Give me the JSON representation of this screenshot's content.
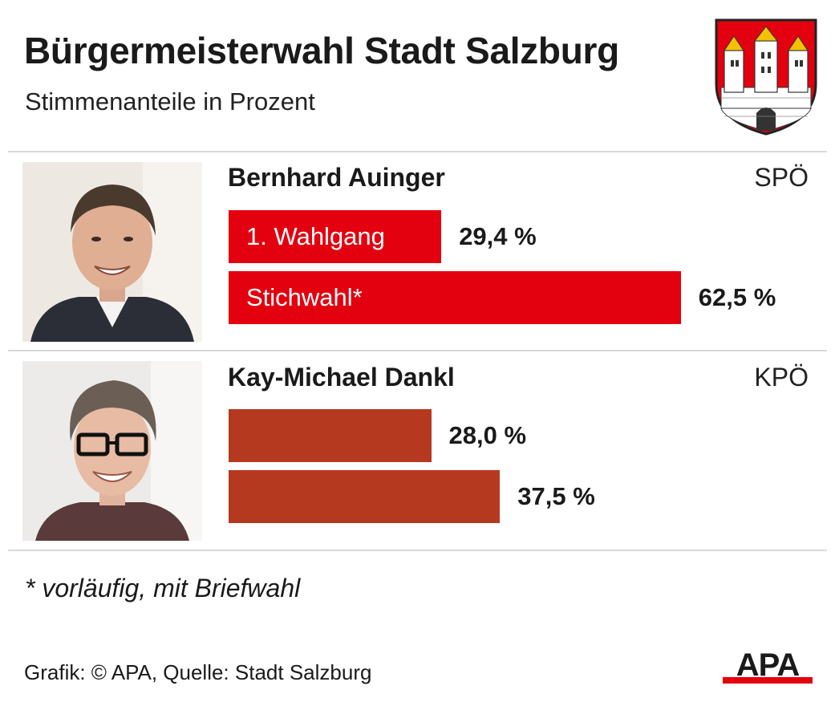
{
  "title": "Bürgermeisterwahl Stadt Salzburg",
  "subtitle": "Stimmenanteile in Prozent",
  "colors": {
    "spoe": "#e3000f",
    "kpoe": "#b5391f",
    "rule": "#d9d9d9"
  },
  "chart_data": {
    "type": "bar",
    "orientation": "horizontal",
    "title": "Bürgermeisterwahl Stadt Salzburg",
    "subtitle": "Stimmenanteile in Prozent",
    "xlim": [
      0,
      100
    ],
    "grid": false,
    "series_labels": [
      "1. Wahlgang",
      "Stichwahl*"
    ],
    "candidates": [
      {
        "name": "Bernhard Auinger",
        "party": "SPÖ",
        "color": "#e3000f",
        "values": [
          29.4,
          62.5
        ],
        "value_labels": [
          "29,4 %",
          "62,5 %"
        ]
      },
      {
        "name": "Kay-Michael Dankl",
        "party": "KPÖ",
        "color": "#b5391f",
        "values": [
          28.0,
          37.5
        ],
        "value_labels": [
          "28,0 %",
          "37,5 %"
        ]
      }
    ]
  },
  "footnote": "* vorläufig, mit Briefwahl",
  "source": "Grafik: © APA, Quelle: Stadt Salzburg",
  "logo_text": "APA"
}
